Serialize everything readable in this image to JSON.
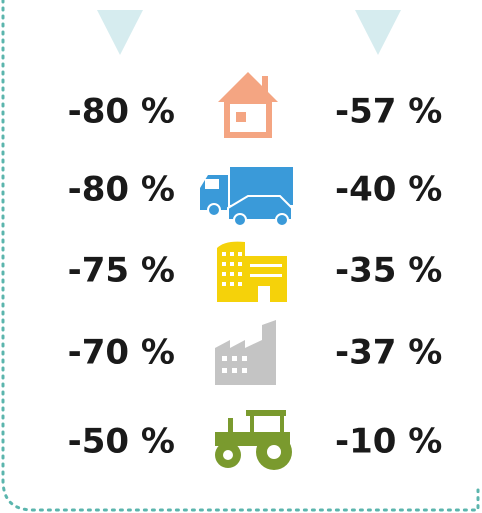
{
  "rows": [
    {
      "left": "-80 %",
      "right": "-57 %"
    },
    {
      "left": "-80 %",
      "right": "-40 %"
    },
    {
      "left": "-75 %",
      "right": "-35 %"
    },
    {
      "left": "-70 %",
      "right": "-37 %"
    },
    {
      "left": "-50 %",
      "right": "-10 %"
    }
  ]
}
